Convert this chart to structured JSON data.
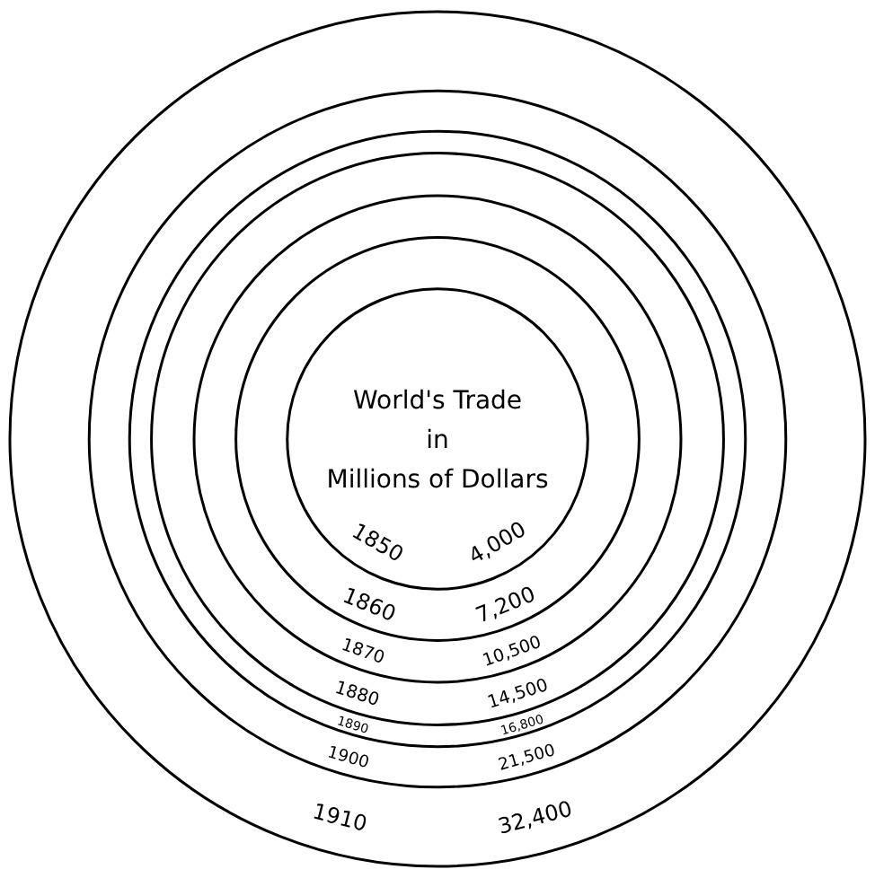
{
  "chart_data": {
    "type": "other",
    "title": "World's Trade\nin\nMillions of Dollars",
    "categories": [
      "1850",
      "1860",
      "1870",
      "1880",
      "1890",
      "1900",
      "1910"
    ],
    "values": [
      4000,
      7200,
      10500,
      14500,
      16800,
      21500,
      32400
    ],
    "value_labels": [
      "4,000",
      "7,200",
      "10,500",
      "14,500",
      "16,800",
      "21,500",
      "32,400"
    ],
    "color": "#000000"
  }
}
